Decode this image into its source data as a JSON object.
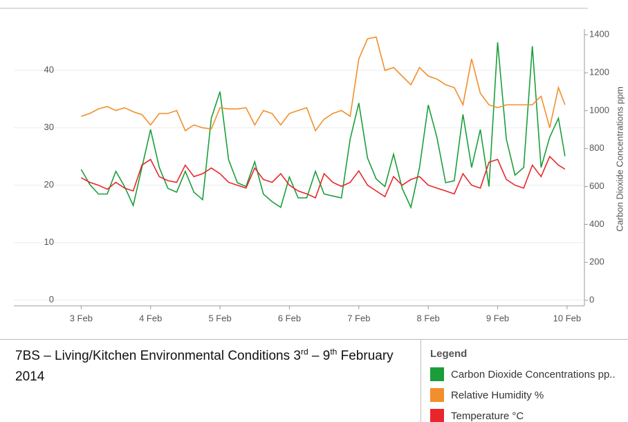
{
  "chart_data": {
    "type": "line",
    "title_parts": [
      "7BS – Living/Kitchen  Environmental Conditions 3",
      "rd",
      " – 9",
      "th",
      " February 2014"
    ],
    "legend_title": "Legend",
    "y2label": "Carbon Dioxide Concentrations ppm",
    "x": [
      3,
      3.125,
      3.25,
      3.375,
      3.5,
      3.625,
      3.75,
      3.875,
      4,
      4.125,
      4.25,
      4.375,
      4.5,
      4.625,
      4.75,
      4.875,
      5,
      5.125,
      5.25,
      5.375,
      5.5,
      5.625,
      5.75,
      5.875,
      6,
      6.125,
      6.25,
      6.375,
      6.5,
      6.625,
      6.75,
      6.875,
      7,
      7.125,
      7.25,
      7.375,
      7.5,
      7.625,
      7.75,
      7.875,
      8,
      8.125,
      8.25,
      8.375,
      8.5,
      8.625,
      8.75,
      8.875,
      9,
      9.125,
      9.25,
      9.375,
      9.5,
      9.625,
      9.75,
      9.875,
      9.97
    ],
    "xlim": [
      2.03,
      10.25
    ],
    "xticks": [
      {
        "value": 3,
        "label": "3 Feb"
      },
      {
        "value": 4,
        "label": "4 Feb"
      },
      {
        "value": 5,
        "label": "5 Feb"
      },
      {
        "value": 6,
        "label": "6 Feb"
      },
      {
        "value": 7,
        "label": "7 Feb"
      },
      {
        "value": 8,
        "label": "8 Feb"
      },
      {
        "value": 9,
        "label": "9 Feb"
      },
      {
        "value": 10,
        "label": "10 Feb"
      }
    ],
    "ylim": [
      -1,
      47.2
    ],
    "yticks": [
      0,
      10,
      20,
      30,
      40
    ],
    "y2lim": [
      -29,
      1430
    ],
    "y2ticks": [
      0,
      200,
      400,
      600,
      800,
      1000,
      1200,
      1400
    ],
    "grid": true,
    "series": [
      {
        "name": "Carbon Dioxide Concentrations pp..",
        "color": "#1a9e3a",
        "axis": "y2",
        "values": [
          690,
          610,
          560,
          560,
          680,
          600,
          500,
          700,
          900,
          700,
          590,
          570,
          680,
          570,
          530,
          960,
          1100,
          740,
          620,
          600,
          730,
          560,
          520,
          490,
          650,
          540,
          540,
          680,
          560,
          550,
          540,
          850,
          1040,
          750,
          640,
          600,
          770,
          590,
          490,
          700,
          1030,
          860,
          620,
          630,
          980,
          700,
          900,
          600,
          1360,
          850,
          660,
          700,
          1340,
          700,
          860,
          960,
          760
        ]
      },
      {
        "name": "Relative Humidity %",
        "color": "#f28e2b",
        "values": [
          32,
          32.5,
          33.3,
          33.7,
          33,
          33.5,
          32.8,
          32.3,
          30.5,
          32.5,
          32.5,
          33,
          29.5,
          30.5,
          30,
          29.8,
          33.5,
          33.3,
          33.3,
          33.5,
          30.5,
          33,
          32.5,
          30.5,
          32.5,
          33,
          33.5,
          29.5,
          31.5,
          32.5,
          33,
          32,
          42,
          45.5,
          45.8,
          40,
          40.5,
          39,
          37.5,
          40.5,
          39,
          38.5,
          37.5,
          37,
          34,
          42,
          36,
          34,
          33.5,
          34,
          34,
          34,
          34,
          35.5,
          30,
          37,
          34
        ]
      },
      {
        "name": "Temperature °C",
        "color": "#e8262b",
        "values": [
          21.3,
          20.5,
          20,
          19.3,
          20.5,
          19.5,
          19,
          23.5,
          24.5,
          21.5,
          20.8,
          20.5,
          23.5,
          21.5,
          22,
          23,
          22,
          20.5,
          20,
          19.5,
          23,
          21,
          20.5,
          22,
          20,
          19,
          18.5,
          17.8,
          22,
          20.5,
          19.8,
          20.5,
          22.5,
          20,
          19,
          18,
          21.5,
          20,
          21,
          21.5,
          20,
          19.5,
          19,
          18.5,
          22,
          20,
          19.5,
          24,
          24.5,
          21,
          20,
          19.5,
          23.5,
          21.5,
          25,
          23.5,
          22.8
        ]
      }
    ]
  }
}
